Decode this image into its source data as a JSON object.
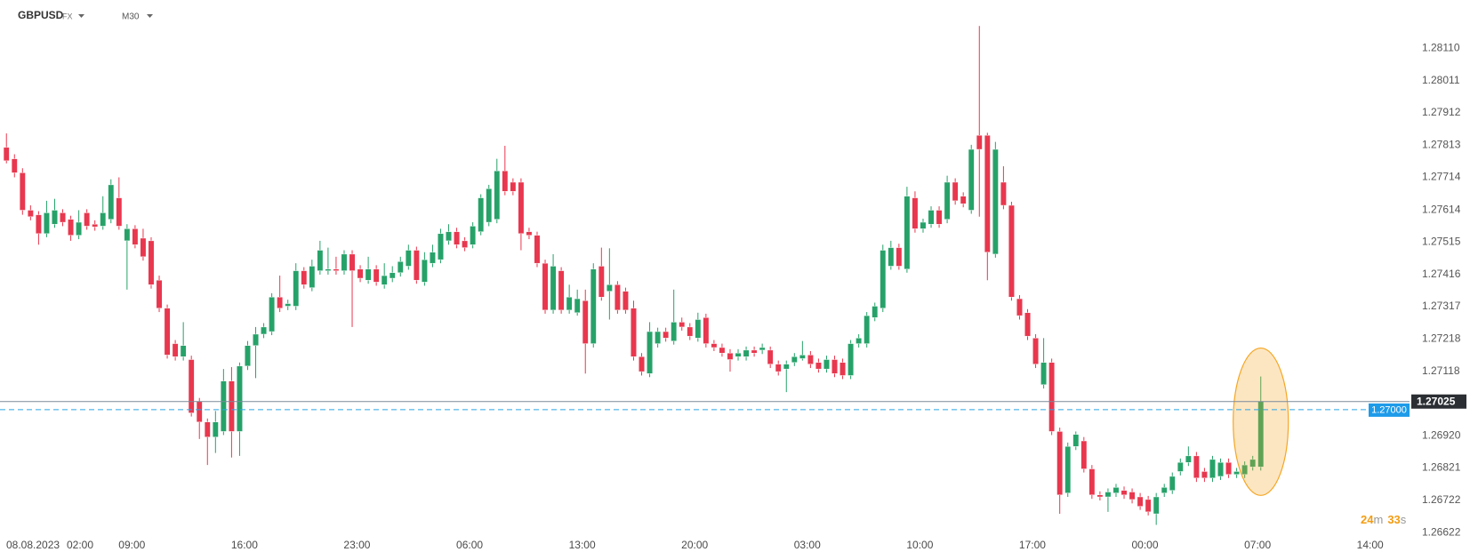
{
  "chart_data": {
    "type": "candlestick",
    "header": {
      "symbol": "GBPUSD",
      "market": "FX",
      "timeframe": "M30"
    },
    "date_label": "08.08.2023",
    "up_color": "#26a269",
    "down_color": "#e8374e",
    "xlim": [
      -0.8,
      174.5
    ],
    "xticks": [
      {
        "value": 1.6,
        "label": "02:00"
      },
      {
        "value": 15.6,
        "label": "09:00"
      },
      {
        "value": 29.6,
        "label": "16:00"
      },
      {
        "value": 43.6,
        "label": "23:00"
      },
      {
        "value": 57.6,
        "label": "06:00"
      },
      {
        "value": 71.6,
        "label": "13:00"
      },
      {
        "value": 85.6,
        "label": "20:00"
      },
      {
        "value": 99.6,
        "label": "03:00"
      },
      {
        "value": 113.6,
        "label": "10:00"
      },
      {
        "value": 127.6,
        "label": "17:00"
      },
      {
        "value": 141.6,
        "label": "00:00"
      },
      {
        "value": 155.6,
        "label": "07:00"
      },
      {
        "value": 169.6,
        "label": "14:00"
      }
    ],
    "ylim": [
      1.2662,
      1.28259
    ],
    "yticks": [
      {
        "value": 1.2811,
        "label": "1.28110"
      },
      1.28011,
      1.27912,
      1.27813,
      1.27714,
      1.27614,
      1.27515,
      1.27416,
      1.27317,
      1.27218,
      1.27118,
      {
        "value": 1.2692,
        "label": "1.26920"
      },
      1.26821,
      1.26722,
      1.26622
    ],
    "current_price": 1.27025,
    "price_line": {
      "value": 1.27,
      "label": "1.27000"
    },
    "timer": {
      "minutes": "24",
      "minutes_unit": "m",
      "seconds": "33",
      "seconds_unit": "s"
    },
    "open": [
      1.27806,
      1.27771,
      1.27728,
      1.27613,
      1.27599,
      1.27541,
      1.2757,
      1.27605,
      1.27585,
      1.27536,
      1.27605,
      1.2757,
      1.27564,
      1.27585,
      1.27651,
      1.27519,
      1.27556,
      1.27527,
      1.27519,
      1.27398,
      1.27312,
      1.27203,
      1.27163,
      1.27154,
      1.27025,
      1.26962,
      1.26916,
      1.26933,
      1.27088,
      1.26933,
      1.27134,
      1.27197,
      1.27232,
      1.2724,
      1.27346,
      1.27318,
      1.27318,
      1.27427,
      1.27375,
      1.27427,
      1.27427,
      1.27432,
      1.27427,
      1.27478,
      1.27432,
      1.27398,
      1.27432,
      1.27384,
      1.27404,
      1.27421,
      1.27441,
      1.2749,
      1.27392,
      1.2745,
      1.27461,
      1.27519,
      1.27547,
      1.27519,
      1.27507,
      1.27547,
      1.27576,
      1.27585,
      1.27734,
      1.27699,
      1.27699,
      1.27547,
      1.27536,
      1.2745,
      1.27306,
      1.27427,
      1.27306,
      1.27298,
      1.27335,
      1.27203,
      1.27441,
      1.27364,
      1.27384,
      1.27364,
      1.27312,
      1.27163,
      1.27111,
      1.27203,
      1.2724,
      1.27211,
      1.27269,
      1.27254,
      1.2722,
      1.27283,
      1.27203,
      1.27191,
      1.27174,
      1.27163,
      1.27163,
      1.27183,
      1.27183,
      1.27183,
      1.2714,
      1.27125,
      1.27145,
      1.27157,
      1.27168,
      1.27145,
      1.27125,
      1.27154,
      1.27145,
      1.27105,
      1.27203,
      1.27203,
      1.27283,
      1.27312,
      1.27441,
      1.27498,
      1.27432,
      1.27651,
      1.27556,
      1.2757,
      1.27613,
      1.27585,
      1.27699,
      1.27656,
      1.27613,
      1.27843,
      1.27843,
      1.27478,
      1.27699,
      1.27628,
      1.27341,
      1.27298,
      1.2722,
      1.27077,
      1.27145,
      1.26933,
      1.26744,
      1.26887,
      1.26904,
      1.26818,
      1.26738,
      1.26732,
      1.26744,
      1.26752,
      1.26747,
      1.26732,
      1.26724,
      1.2668,
      1.26744,
      1.26752,
      1.2681,
      1.26838,
      1.26858,
      1.2681,
      1.2679,
      1.26795,
      1.26838,
      1.26801,
      1.26801,
      1.26824,
      1.26824
    ],
    "high": [
      1.27849,
      1.27785,
      1.27742,
      1.27628,
      1.2761,
      1.27642,
      1.27648,
      1.27616,
      1.27596,
      1.27613,
      1.27616,
      1.27582,
      1.27656,
      1.27708,
      1.27714,
      1.2757,
      1.27567,
      1.27556,
      1.2753,
      1.27412,
      1.27323,
      1.27214,
      1.27269,
      1.27166,
      1.27036,
      1.26973,
      1.26996,
      1.27125,
      1.27131,
      1.27145,
      1.27211,
      1.27254,
      1.27266,
      1.27358,
      1.27412,
      1.27338,
      1.2745,
      1.27438,
      1.27461,
      1.27519,
      1.27498,
      1.2747,
      1.2749,
      1.2749,
      1.27444,
      1.2747,
      1.27444,
      1.2745,
      1.27441,
      1.2747,
      1.27507,
      1.27501,
      1.27484,
      1.27507,
      1.27556,
      1.2757,
      1.27559,
      1.2753,
      1.27576,
      1.27662,
      1.27691,
      1.27771,
      1.27811,
      1.27711,
      1.27711,
      1.27559,
      1.27547,
      1.27461,
      1.27478,
      1.27438,
      1.27384,
      1.27369,
      1.27369,
      1.2745,
      1.27498,
      1.27496,
      1.27395,
      1.27375,
      1.27335,
      1.27174,
      1.27269,
      1.27252,
      1.27252,
      1.27369,
      1.27283,
      1.27266,
      1.27298,
      1.27295,
      1.27214,
      1.27203,
      1.27186,
      1.27186,
      1.27194,
      1.27194,
      1.27203,
      1.27194,
      1.27151,
      1.27151,
      1.27174,
      1.27211,
      1.2718,
      1.27157,
      1.27166,
      1.27166,
      1.27157,
      1.27214,
      1.27232,
      1.273,
      1.27329,
      1.27507,
      1.27519,
      1.2751,
      1.27685,
      1.27671,
      1.27587,
      1.27625,
      1.27625,
      1.27719,
      1.27711,
      1.27668,
      1.27814,
      1.28179,
      1.27851,
      1.27823,
      1.27748,
      1.27639,
      1.27352,
      1.27309,
      1.27232,
      1.2722,
      1.27157,
      1.26945,
      1.26899,
      1.26933,
      1.26916,
      1.2683,
      1.26749,
      1.26758,
      1.26772,
      1.26764,
      1.26758,
      1.26744,
      1.26735,
      1.26744,
      1.26772,
      1.26807,
      1.2685,
      1.26887,
      1.2687,
      1.26821,
      1.26858,
      1.2685,
      1.2685,
      1.26821,
      1.26841,
      1.26858,
      1.27102
    ],
    "low": [
      1.27757,
      1.27714,
      1.27599,
      1.27582,
      1.27507,
      1.2753,
      1.27559,
      1.27564,
      1.27519,
      1.27524,
      1.27553,
      1.2755,
      1.27553,
      1.27573,
      1.27553,
      1.27369,
      1.27496,
      1.27458,
      1.27372,
      1.273,
      1.27157,
      1.27151,
      1.27151,
      1.26979,
      1.2691,
      1.2683,
      1.26867,
      1.26922,
      1.26853,
      1.26858,
      1.27122,
      1.27097,
      1.2722,
      1.27229,
      1.273,
      1.27306,
      1.27306,
      1.27372,
      1.27364,
      1.27415,
      1.27415,
      1.27415,
      1.27415,
      1.27254,
      1.27392,
      1.27387,
      1.27381,
      1.27372,
      1.27392,
      1.27409,
      1.2743,
      1.27387,
      1.27381,
      1.27438,
      1.2745,
      1.27507,
      1.27496,
      1.27487,
      1.27496,
      1.27536,
      1.27564,
      1.27573,
      1.27659,
      1.27659,
      1.2749,
      1.27524,
      1.27438,
      1.27295,
      1.27295,
      1.27295,
      1.27295,
      1.27289,
      1.27111,
      1.27191,
      1.27335,
      1.27277,
      1.27295,
      1.27295,
      1.27151,
      1.27105,
      1.271,
      1.27191,
      1.27209,
      1.272,
      1.27243,
      1.27214,
      1.27209,
      1.27191,
      1.2718,
      1.27163,
      1.27117,
      1.27151,
      1.27151,
      1.27163,
      1.27171,
      1.27128,
      1.27105,
      1.27054,
      1.27134,
      1.27151,
      1.27128,
      1.27114,
      1.27114,
      1.271,
      1.27094,
      1.27094,
      1.27191,
      1.27191,
      1.27272,
      1.273,
      1.2743,
      1.2743,
      1.27421,
      1.27544,
      1.27544,
      1.27559,
      1.27559,
      1.27573,
      1.2763,
      1.27622,
      1.27602,
      1.27593,
      1.27398,
      1.27467,
      1.27616,
      1.27335,
      1.27277,
      1.27214,
      1.27128,
      1.27065,
      1.26922,
      1.2668,
      1.26732,
      1.26876,
      1.26807,
      1.26726,
      1.26721,
      1.26686,
      1.26732,
      1.26726,
      1.26712,
      1.26692,
      1.26675,
      1.26646,
      1.26732,
      1.26741,
      1.26798,
      1.26827,
      1.26778,
      1.26778,
      1.26778,
      1.26784,
      1.2679,
      1.2679,
      1.2679,
      1.26813,
      1.26813
    ],
    "close": [
      1.27765,
      1.27728,
      1.27613,
      1.27593,
      1.27541,
      1.27605,
      1.27613,
      1.27576,
      1.27536,
      1.27576,
      1.27564,
      1.27562,
      1.27605,
      1.27691,
      1.27564,
      1.27556,
      1.27507,
      1.2747,
      1.27384,
      1.27312,
      1.27168,
      1.27163,
      1.27197,
      1.2699,
      1.26962,
      1.26916,
      1.26962,
      1.27088,
      1.26933,
      1.27134,
      1.27197,
      1.27232,
      1.27254,
      1.27346,
      1.27312,
      1.27326,
      1.27427,
      1.27384,
      1.27441,
      1.2749,
      1.27432,
      1.27427,
      1.27478,
      1.27427,
      1.27404,
      1.27432,
      1.27392,
      1.27412,
      1.27421,
      1.27455,
      1.2749,
      1.27398,
      1.27461,
      1.27484,
      1.27541,
      1.27547,
      1.27507,
      1.27498,
      1.27564,
      1.27651,
      1.27679,
      1.27734,
      1.27671,
      1.27671,
      1.27541,
      1.27536,
      1.2745,
      1.27306,
      1.27441,
      1.27306,
      1.27346,
      1.27341,
      1.27203,
      1.27432,
      1.27346,
      1.27384,
      1.27306,
      1.27306,
      1.27163,
      1.27117,
      1.2724,
      1.2724,
      1.2722,
      1.27269,
      1.27254,
      1.27226,
      1.27277,
      1.27203,
      1.27191,
      1.27174,
      1.27154,
      1.27174,
      1.27183,
      1.27174,
      1.27191,
      1.2714,
      1.27117,
      1.2714,
      1.27163,
      1.27168,
      1.2714,
      1.27125,
      1.27154,
      1.27111,
      1.27105,
      1.27203,
      1.2722,
      1.27289,
      1.27318,
      1.2749,
      1.27498,
      1.27441,
      1.27656,
      1.27556,
      1.27576,
      1.27613,
      1.2757,
      1.27699,
      1.27642,
      1.27633,
      1.278,
      1.278,
      1.27484,
      1.278,
      1.27628,
      1.27346,
      1.27289,
      1.27226,
      1.2714,
      1.27145,
      1.26933,
      1.26738,
      1.26887,
      1.26924,
      1.26818,
      1.26738,
      1.26732,
      1.26747,
      1.26761,
      1.26738,
      1.26724,
      1.26703,
      1.26686,
      1.26732,
      1.26761,
      1.26795,
      1.26838,
      1.26858,
      1.2679,
      1.2679,
      1.26847,
      1.26838,
      1.26801,
      1.2681,
      1.2683,
      1.26847,
      1.27025
    ]
  }
}
